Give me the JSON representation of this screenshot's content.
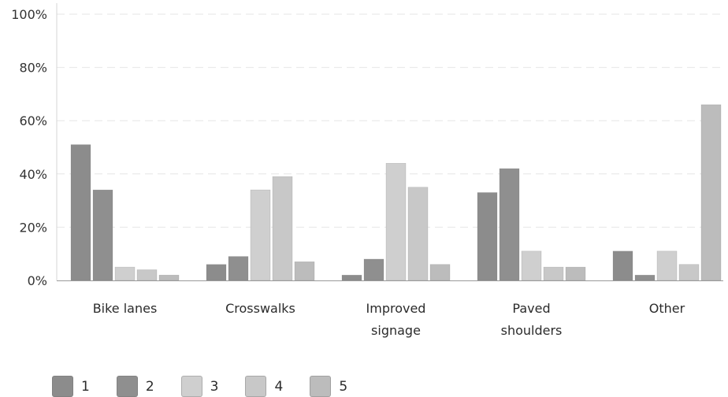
{
  "chart_data": {
    "type": "bar",
    "title": "",
    "xlabel": "",
    "ylabel": "",
    "ylim": [
      0,
      100
    ],
    "yticks": [
      "0%",
      "20%",
      "40%",
      "60%",
      "80%",
      "100%"
    ],
    "categories": [
      [
        "Bike lanes"
      ],
      [
        "Crosswalks"
      ],
      [
        "Improved",
        "signage"
      ],
      [
        "Paved",
        "shoulders"
      ],
      [
        "Other"
      ]
    ],
    "series": [
      {
        "name": "1",
        "color": "#8c8c8c",
        "values": [
          51,
          6,
          2,
          33,
          11
        ]
      },
      {
        "name": "2",
        "color": "#8f8f8f",
        "values": [
          34,
          9,
          8,
          42,
          2
        ]
      },
      {
        "name": "3",
        "color": "#cfcfcf",
        "values": [
          5,
          34,
          44,
          11,
          11
        ]
      },
      {
        "name": "4",
        "color": "#c8c8c8",
        "values": [
          4,
          39,
          35,
          5,
          6
        ]
      },
      {
        "name": "5",
        "color": "#bcbcbc",
        "values": [
          2,
          7,
          6,
          5,
          66
        ]
      }
    ],
    "grid": true,
    "legend": "bottom-left"
  }
}
